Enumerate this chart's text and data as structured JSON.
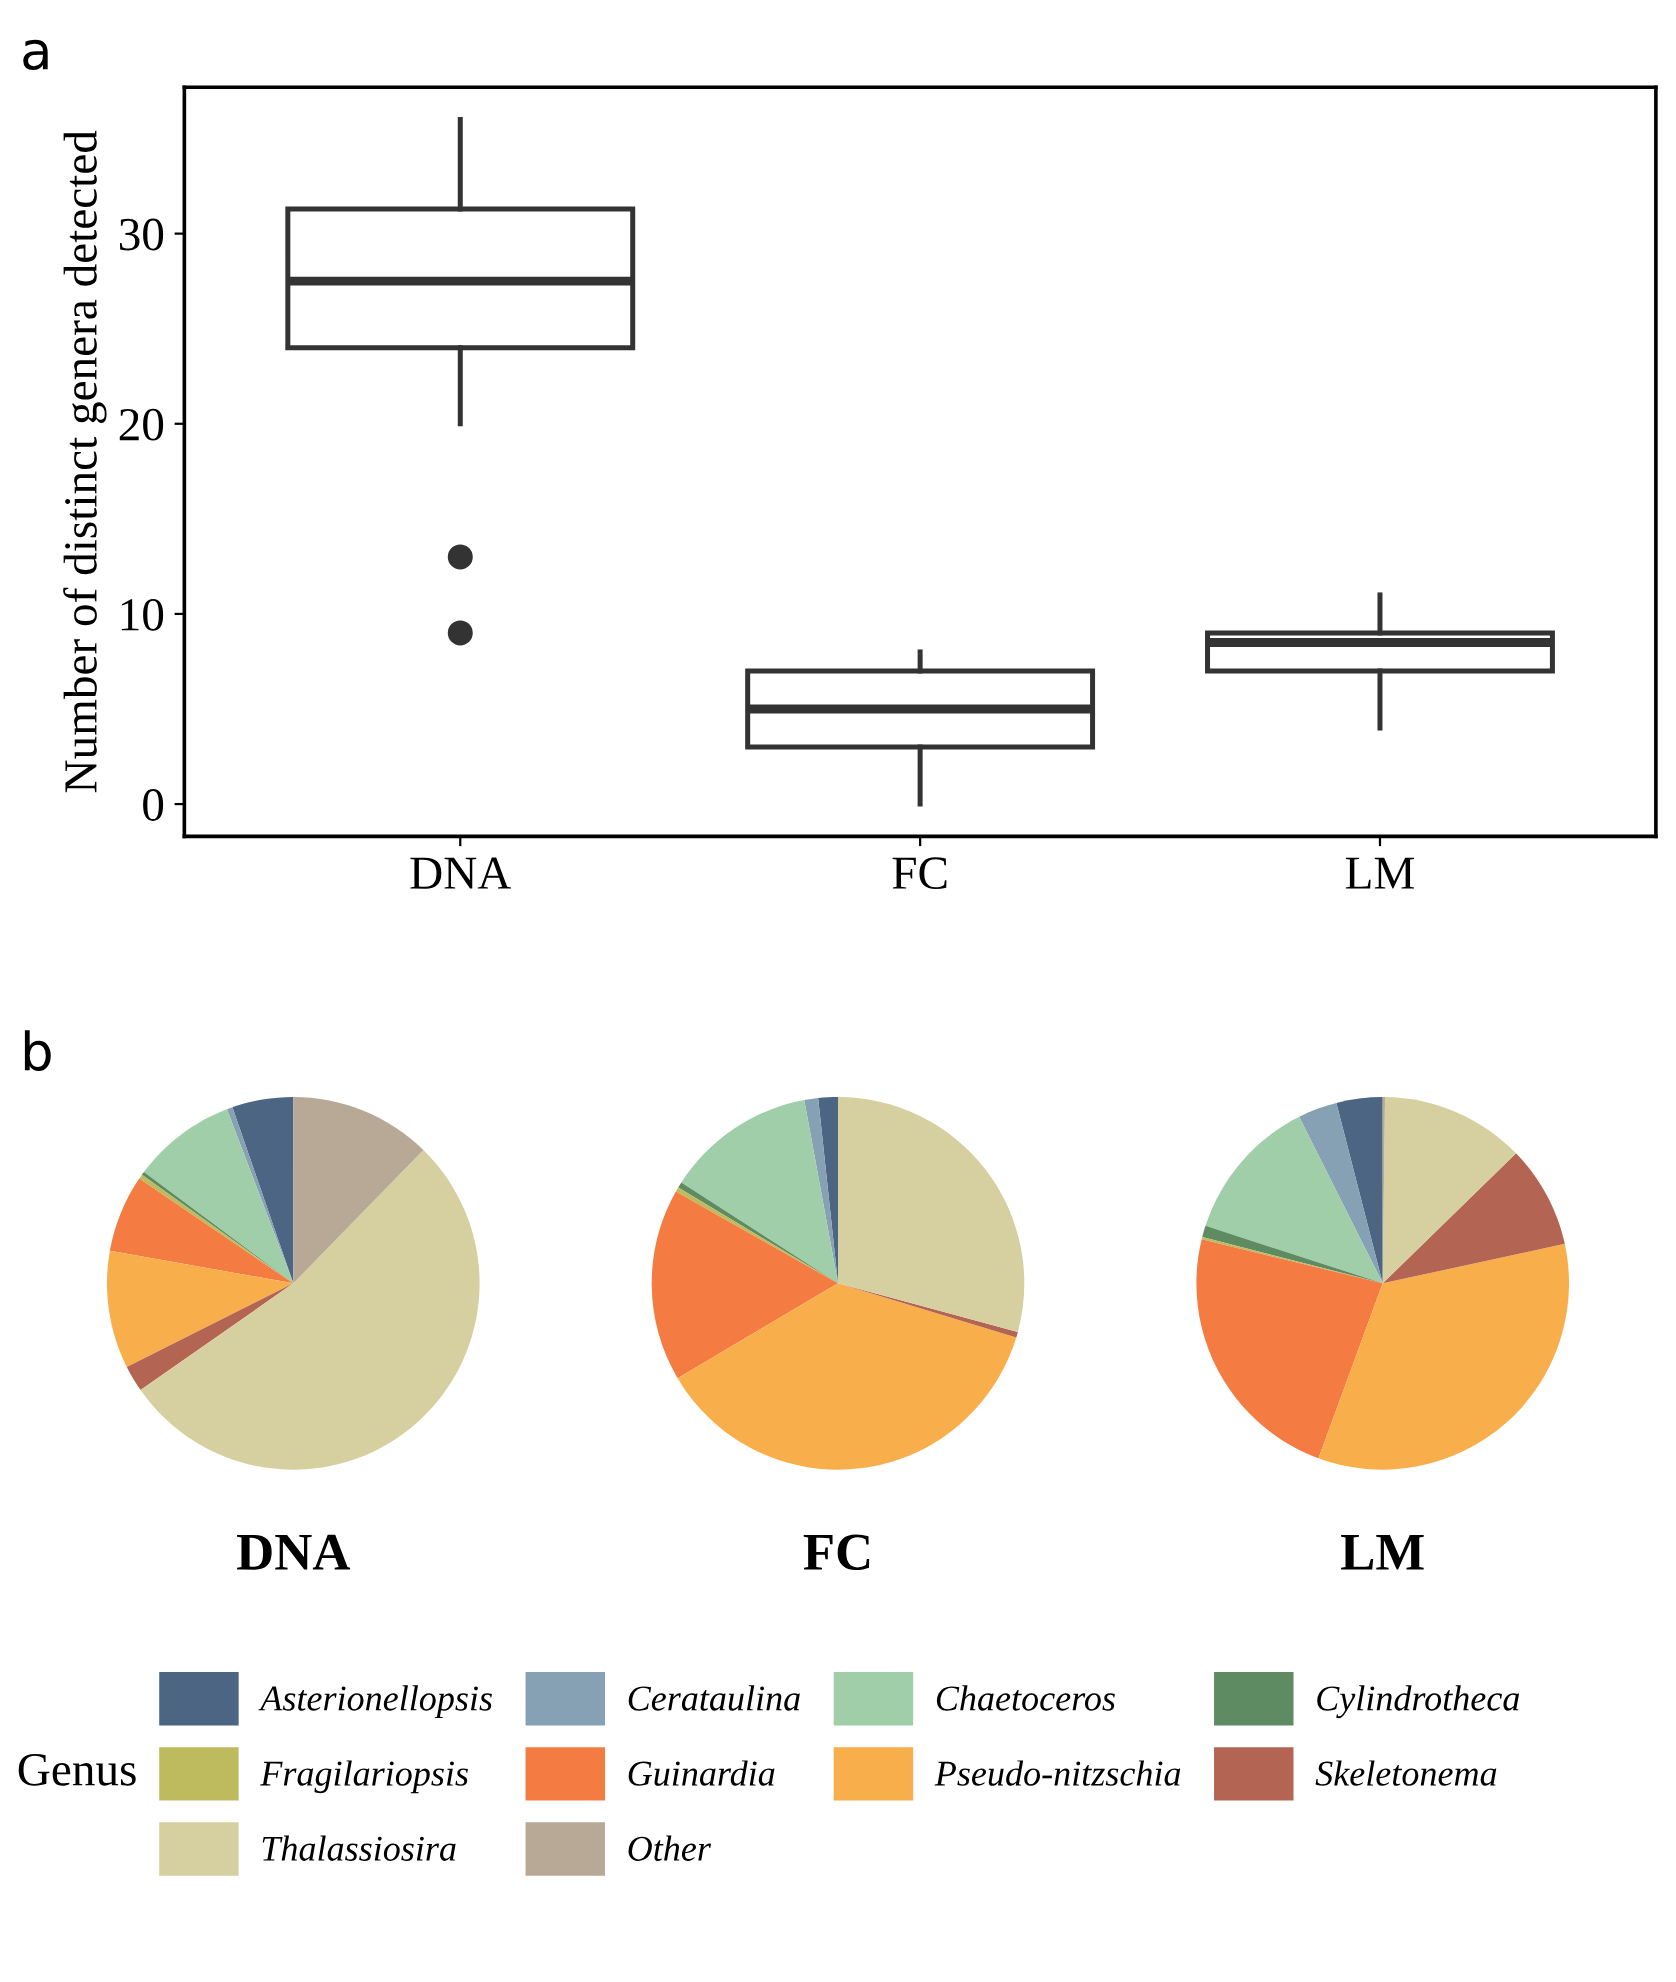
{
  "chart_data": [
    {
      "type": "box",
      "ylabel": "Number of distinct genera detected",
      "categories": [
        "DNA",
        "FC",
        "LM"
      ],
      "annotations": [
        "a"
      ],
      "ylim": [
        -1.7,
        37.7
      ],
      "yticks": [
        0,
        10,
        20,
        30
      ],
      "grid": false,
      "color": "#333333",
      "boxes": [
        {
          "low": 20,
          "q1": 24,
          "median": 27.5,
          "q3": 31.3,
          "high": 36,
          "outliers": [
            13,
            9
          ]
        },
        {
          "low": 0,
          "q1": 3,
          "median": 5,
          "q3": 7,
          "high": 8
        },
        {
          "low": 4,
          "q1": 7,
          "median": 8.5,
          "q3": 9,
          "high": 11
        }
      ]
    },
    {
      "type": "pie",
      "title": "DNA",
      "annotations": [
        "b"
      ],
      "legend": "bottom",
      "legend_title": "Genus",
      "categories": [
        "Asterionellopsis",
        "Cerataulina",
        "Chaetoceros",
        "Cylindrotheca",
        "Fragilariopsis",
        "Guinardia",
        "Pseudo-nitzschia",
        "Skeletonema",
        "Thalassiosira",
        "Other"
      ],
      "colors": [
        "#4b6582",
        "#86a0b4",
        "#9fcea8",
        "#5e8b62",
        "#bdbb5e",
        "#f47b42",
        "#f9ae4c",
        "#b46452",
        "#d6cf9f",
        "#b8a996"
      ],
      "values": [
        5.3,
        0.5,
        9,
        0.3,
        0.4,
        6.7,
        10.2,
        2.3,
        53,
        12.3
      ]
    },
    {
      "type": "pie",
      "title": "FC",
      "colors": [
        "#4b6582",
        "#86a0b4",
        "#9fcea8",
        "#5e8b62",
        "#bdbb5e",
        "#f47b42",
        "#f9ae4c",
        "#b46452",
        "#d6cf9f",
        "#b8a996"
      ],
      "values": [
        1.7,
        1.2,
        13,
        0.5,
        0.4,
        16.7,
        36.8,
        0.5,
        29.2,
        0
      ]
    },
    {
      "type": "pie",
      "title": "LM",
      "colors": [
        "#4b6582",
        "#86a0b4",
        "#9fcea8",
        "#5e8b62",
        "#bdbb5e",
        "#f47b42",
        "#f9ae4c",
        "#b46452",
        "#d6cf9f",
        "#b8a996"
      ],
      "values": [
        4,
        3.4,
        12.6,
        1,
        0.2,
        23.2,
        34,
        8.9,
        12.5,
        0.2
      ]
    }
  ]
}
